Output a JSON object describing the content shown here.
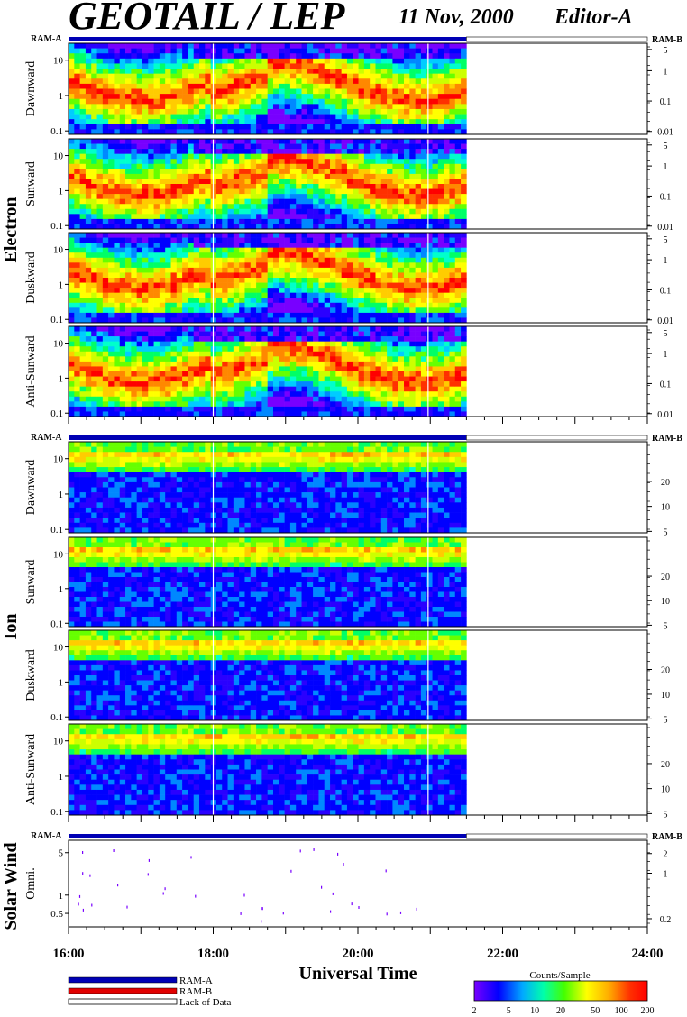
{
  "header": {
    "title": "GEOTAIL / LEP",
    "date": "11 Nov, 2000",
    "editor": "Editor-A"
  },
  "sections": {
    "electron": "Electron",
    "ion": "Ion",
    "solar_wind": "Solar Wind"
  },
  "ram_labels": {
    "left": "RAM-A",
    "right": "RAM-B"
  },
  "xaxis": {
    "title": "Universal Time",
    "ticks": [
      "16:00",
      "18:00",
      "20:00",
      "22:00",
      "24:00"
    ]
  },
  "legend": {
    "items": [
      {
        "label": "RAM-A",
        "color": "#0000b4"
      },
      {
        "label": "RAM-B",
        "color": "#e00000"
      },
      {
        "label": "Lack of Data",
        "color": "#ffffff"
      }
    ]
  },
  "colorbar": {
    "title": "Counts/Sample",
    "ticks": [
      "2",
      "5",
      "10",
      "20",
      "50",
      "100",
      "200"
    ],
    "colors": [
      "#7800ff",
      "#0000ff",
      "#00aaff",
      "#00ffaa",
      "#44ff00",
      "#ffff00",
      "#ffaa00",
      "#ff3000",
      "#ff0000"
    ]
  },
  "chart_data": {
    "type": "heatmap",
    "x_unit": "hours UT",
    "x_range": [
      16,
      24
    ],
    "data_coverage": [
      16,
      21.5
    ],
    "data_gaps_ut": [
      18.0,
      20.97
    ],
    "panels": [
      {
        "group": "Electron",
        "label": "Dawnward",
        "left_ticks": [
          "10",
          "1",
          "0.1"
        ],
        "left_values": [
          10,
          1,
          0.1
        ],
        "left_range": [
          0.08,
          30
        ],
        "right_ticks": [
          "5",
          "1",
          "0.1",
          "0.01"
        ],
        "right_values": [
          5,
          1,
          0.1,
          0.01
        ],
        "right_range": [
          0.008,
          8
        ],
        "ram": true
      },
      {
        "group": "Electron",
        "label": "Sunward",
        "left_ticks": [
          "10",
          "1",
          "0.1"
        ],
        "left_values": [
          10,
          1,
          0.1
        ],
        "left_range": [
          0.08,
          30
        ],
        "right_ticks": [
          "5",
          "1",
          "0.1",
          "0.01"
        ],
        "right_values": [
          5,
          1,
          0.1,
          0.01
        ],
        "right_range": [
          0.008,
          8
        ],
        "ram": false
      },
      {
        "group": "Electron",
        "label": "Duskward",
        "left_ticks": [
          "10",
          "1",
          "0.1"
        ],
        "left_values": [
          10,
          1,
          0.1
        ],
        "left_range": [
          0.08,
          30
        ],
        "right_ticks": [
          "5",
          "1",
          "0.1",
          "0.01"
        ],
        "right_values": [
          5,
          1,
          0.1,
          0.01
        ],
        "right_range": [
          0.008,
          8
        ],
        "ram": false
      },
      {
        "group": "Electron",
        "label": "Anti-Sunward",
        "left_ticks": [
          "10",
          "1",
          "0.1"
        ],
        "left_values": [
          10,
          1,
          0.1
        ],
        "left_range": [
          0.08,
          30
        ],
        "right_ticks": [
          "5",
          "1",
          "0.1",
          "0.01"
        ],
        "right_values": [
          5,
          1,
          0.1,
          0.01
        ],
        "right_range": [
          0.008,
          8
        ],
        "ram": false
      },
      {
        "group": "Ion",
        "label": "Dawnward",
        "left_ticks": [
          "10",
          "1",
          "0.1"
        ],
        "left_values": [
          10,
          1,
          0.1
        ],
        "left_range": [
          0.08,
          30
        ],
        "right_ticks": [
          "20",
          "10",
          "5"
        ],
        "right_values": [
          20,
          10,
          5
        ],
        "right_range": [
          4.8,
          60
        ],
        "ram": true
      },
      {
        "group": "Ion",
        "label": "Sunward",
        "left_ticks": [
          "10",
          "1",
          "0.1"
        ],
        "left_values": [
          10,
          1,
          0.1
        ],
        "left_range": [
          0.08,
          30
        ],
        "right_ticks": [
          "20",
          "10",
          "5"
        ],
        "right_values": [
          20,
          10,
          5
        ],
        "right_range": [
          4.8,
          60
        ],
        "ram": false
      },
      {
        "group": "Ion",
        "label": "Duskward",
        "left_ticks": [
          "10",
          "1",
          "0.1"
        ],
        "left_values": [
          10,
          1,
          0.1
        ],
        "left_range": [
          0.08,
          30
        ],
        "right_ticks": [
          "20",
          "10",
          "5"
        ],
        "right_values": [
          20,
          10,
          5
        ],
        "right_range": [
          4.8,
          60
        ],
        "ram": false
      },
      {
        "group": "Ion",
        "label": "Anti-Sunward",
        "left_ticks": [
          "10",
          "1",
          "0.1"
        ],
        "left_values": [
          10,
          1,
          0.1
        ],
        "left_range": [
          0.08,
          30
        ],
        "right_ticks": [
          "20",
          "10",
          "5"
        ],
        "right_values": [
          20,
          10,
          5
        ],
        "right_range": [
          4.8,
          60
        ],
        "ram": false
      },
      {
        "group": "Solar Wind",
        "label": "Omni.",
        "left_ticks": [
          "5",
          "1",
          "0.5"
        ],
        "left_values": [
          5,
          1,
          0.5
        ],
        "left_range": [
          0.3,
          8
        ],
        "right_ticks": [
          "2",
          "1",
          "0.2"
        ],
        "right_values": [
          2,
          1,
          0.2
        ],
        "right_range": [
          0.15,
          3.2
        ],
        "ram": true
      }
    ]
  }
}
